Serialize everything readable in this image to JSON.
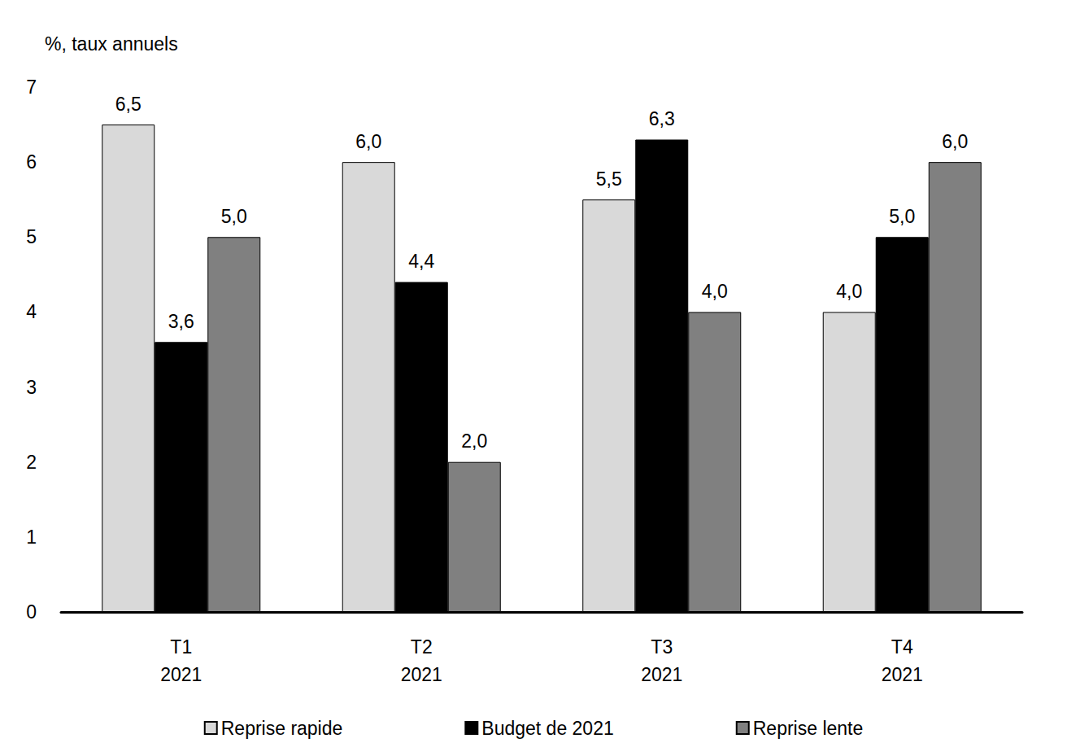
{
  "chart_data": {
    "type": "bar",
    "y_label": "%, taux annuels",
    "categories": [
      "T1\n2021",
      "T2\n2021",
      "T3\n2021",
      "T4\n2021"
    ],
    "series": [
      {
        "name": "Reprise rapide",
        "color": "#d9d9d9",
        "values": [
          6.5,
          6.0,
          5.5,
          4.0
        ],
        "value_labels": [
          "6,5",
          "6,0",
          "5,5",
          "4,0"
        ]
      },
      {
        "name": "Budget de 2021",
        "color": "#000000",
        "values": [
          3.6,
          4.4,
          6.3,
          5.0
        ],
        "value_labels": [
          "3,6",
          "4,4",
          "6,3",
          "5,0"
        ]
      },
      {
        "name": "Reprise lente",
        "color": "#808080",
        "values": [
          5.0,
          2.0,
          4.0,
          6.0
        ],
        "value_labels": [
          "5,0",
          "2,0",
          "4,0",
          "6,0"
        ]
      }
    ],
    "ylim": [
      0,
      7
    ],
    "yticks": [
      0,
      1,
      2,
      3,
      4,
      5,
      6,
      7
    ],
    "grid": false,
    "legend": "bottom",
    "data_labels": true
  }
}
